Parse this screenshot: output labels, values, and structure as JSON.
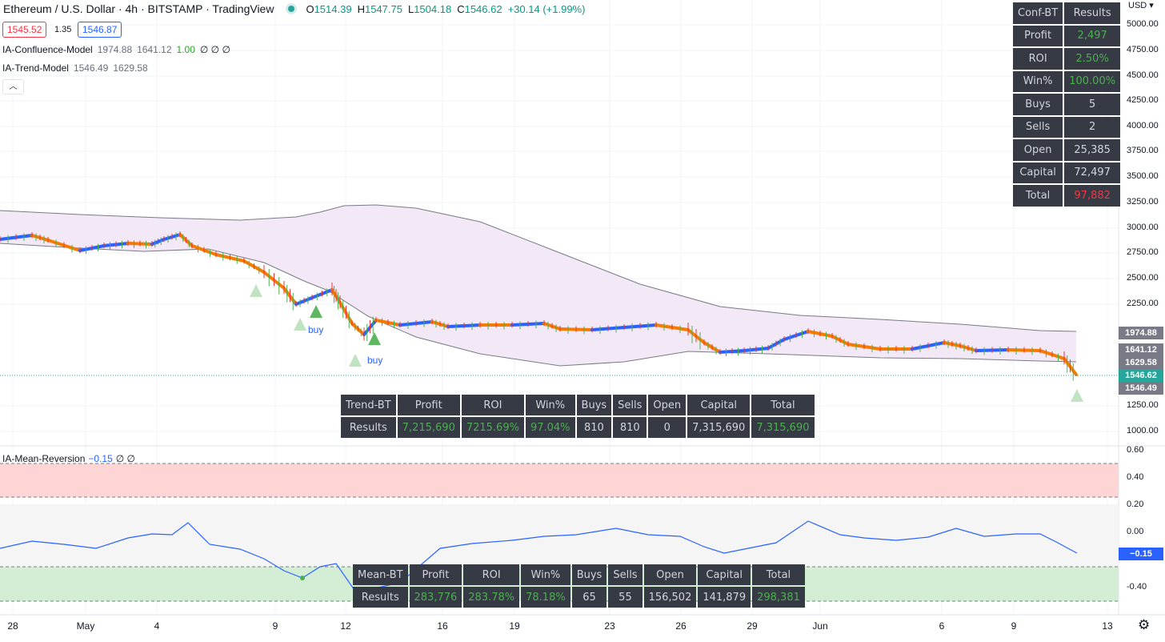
{
  "header": {
    "symbol": "Ethereum / U.S. Dollar · 4h · BITSTAMP · TradingView",
    "ohlc": {
      "o_label": "O",
      "o": "1514.39",
      "h_label": "H",
      "h": "1547.75",
      "l_label": "L",
      "l": "1504.18",
      "c_label": "C",
      "c": "1546.62",
      "change": "+30.14 (+1.99%)"
    }
  },
  "quote": {
    "bid": "1545.52",
    "spread": "1.35",
    "ask": "1546.87"
  },
  "indicators": {
    "confluence": {
      "name": "IA-Confluence-Model",
      "v1": "1974.88",
      "v2": "1641.12",
      "v3": "1.00",
      "v4": "∅ ∅ ∅"
    },
    "trend": {
      "name": "IA-Trend-Model",
      "v1": "1546.49",
      "v2": "1629.58"
    },
    "mean": {
      "name": "IA-Mean-Reversion",
      "v1": "−0.15",
      "v2": "∅ ∅"
    }
  },
  "conf_bt": {
    "header": [
      "Conf-BT",
      "Results"
    ],
    "rows": [
      {
        "label": "Profit",
        "value": "2,497",
        "color": "green"
      },
      {
        "label": "ROI",
        "value": "2.50%",
        "color": "green"
      },
      {
        "label": "Win%",
        "value": "100.00%",
        "color": "green"
      },
      {
        "label": "Buys",
        "value": "5",
        "color": "plain"
      },
      {
        "label": "Sells",
        "value": "2",
        "color": "plain"
      },
      {
        "label": "Open",
        "value": "25,385",
        "color": "plain"
      },
      {
        "label": "Capital",
        "value": "72,497",
        "color": "plain"
      },
      {
        "label": "Total",
        "value": "97,882",
        "color": "red"
      }
    ]
  },
  "trend_bt": {
    "headers": [
      "Trend-BT",
      "Profit",
      "ROI",
      "Win%",
      "Buys",
      "Sells",
      "Open",
      "Capital",
      "Total"
    ],
    "values": [
      "Results",
      "7,215,690",
      "7215.69%",
      "97.04%",
      "810",
      "810",
      "0",
      "7,315,690",
      "7,315,690"
    ],
    "colors": [
      "plain",
      "green",
      "green",
      "green",
      "plain",
      "plain",
      "plain",
      "plain",
      "green"
    ]
  },
  "mean_bt": {
    "headers": [
      "Mean-BT",
      "Profit",
      "ROI",
      "Win%",
      "Buys",
      "Sells",
      "Open",
      "Capital",
      "Total"
    ],
    "values": [
      "Results",
      "283,776",
      "283.78%",
      "78.18%",
      "65",
      "55",
      "156,502",
      "141,879",
      "298,381"
    ],
    "colors": [
      "plain",
      "green",
      "green",
      "green",
      "plain",
      "plain",
      "plain",
      "plain",
      "green"
    ]
  },
  "price_axis": {
    "currency": "USD",
    "ticks": [
      "5000.00",
      "4750.00",
      "4500.00",
      "4250.00",
      "4000.00",
      "3750.00",
      "3500.00",
      "3250.00",
      "3000.00",
      "2750.00",
      "2500.00",
      "2250.00",
      "1250.00",
      "1000.00"
    ],
    "labels": [
      {
        "text": "1974.88",
        "color": "#787b86"
      },
      {
        "text": "1641.12",
        "color": "#787b86"
      },
      {
        "text": "1629.58",
        "color": "#787b86"
      },
      {
        "text": "1546.62",
        "color": "#26a69a"
      },
      {
        "text": "1546.49",
        "color": "#787b86"
      }
    ]
  },
  "osc_axis": {
    "ticks": [
      "0.60",
      "0.40",
      "0.20",
      "0.00",
      "-0.40"
    ],
    "current": "−0.15",
    "current_color": "#2962ff"
  },
  "time_axis": [
    "28",
    "May",
    "4",
    "9",
    "12",
    "16",
    "19",
    "23",
    "26",
    "29",
    "Jun",
    "6",
    "9",
    "13"
  ],
  "signals": {
    "buy_label": "buy"
  },
  "colors": {
    "up": "#2962ff",
    "down": "#f57c00",
    "band_fill": "#f3e8f5",
    "green_zone": "#d4eed6",
    "red_zone": "#fdd5d5"
  }
}
